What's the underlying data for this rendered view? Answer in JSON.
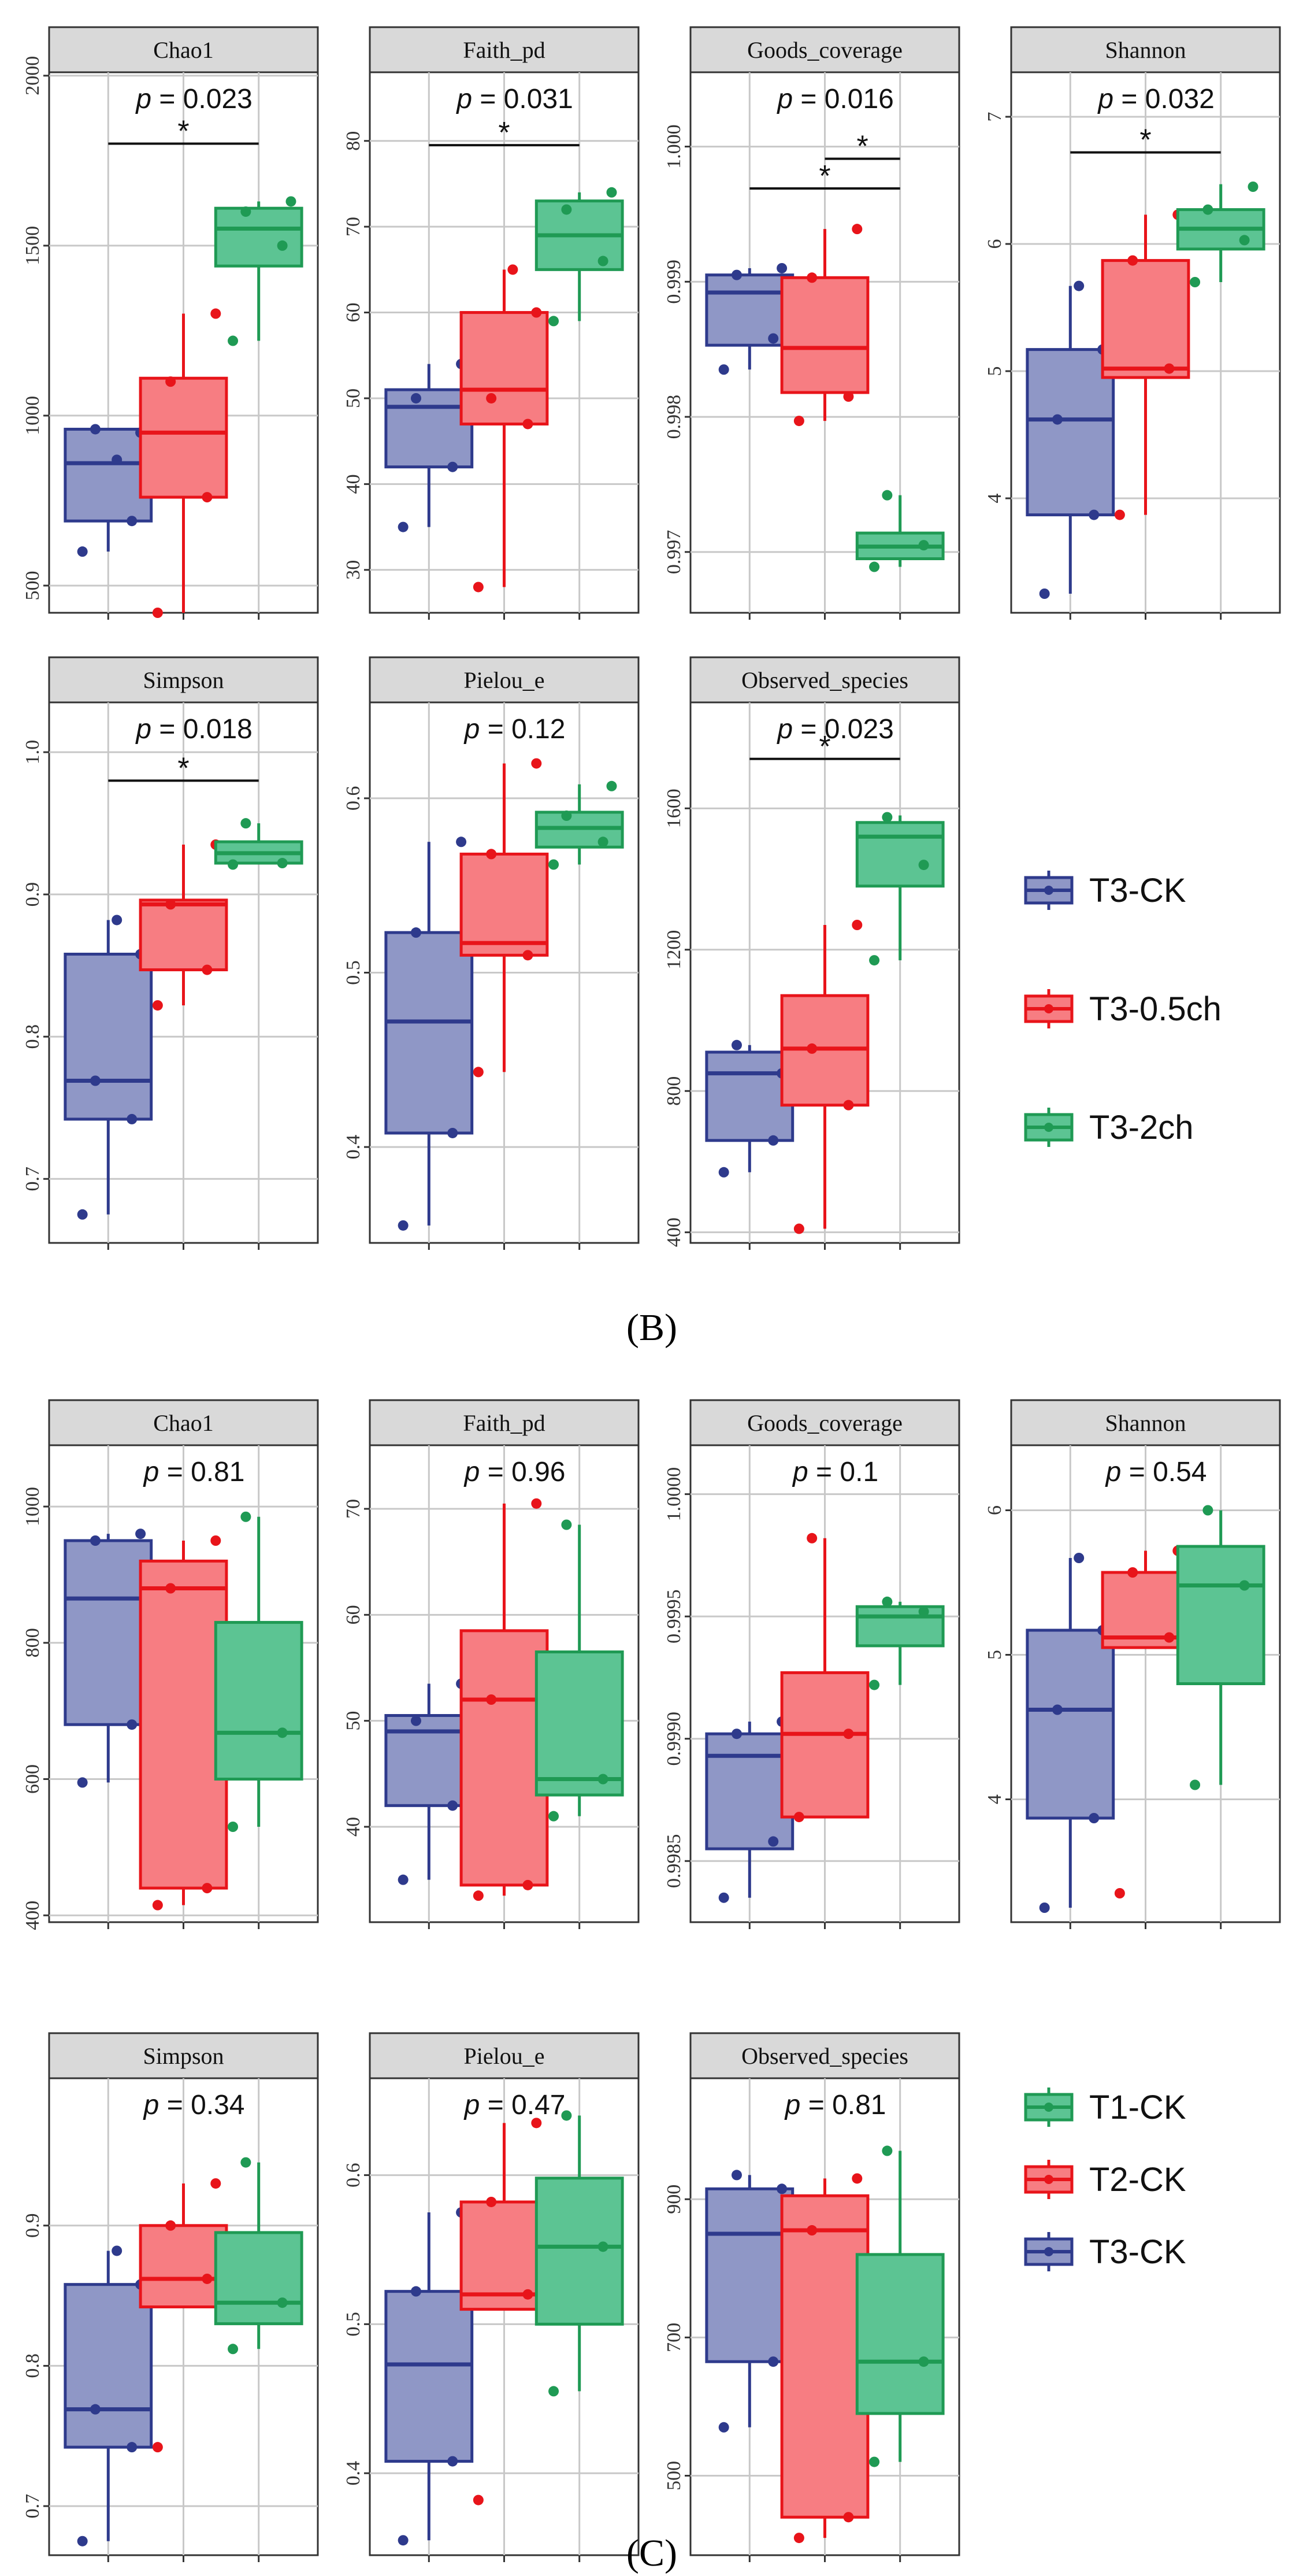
{
  "colors": {
    "T3-CK": "#2e3a8c",
    "T3-CK_fill": "#8f97c6",
    "T3-0.5ch": "#e8141a",
    "T3-0.5ch_fill": "#f77d82",
    "T3-2ch": "#1f9a54",
    "T3-2ch_fill": "#5cc493",
    "T1-CK": "#1f9a54",
    "T1-CK_fill": "#5cc493",
    "T2-CK": "#e8141a",
    "T2-CK_fill": "#f77d82"
  },
  "chart_data": [
    {
      "label": "(B)",
      "type": "box",
      "groups": [
        "T3-CK",
        "T3-0.5ch",
        "T3-2ch"
      ],
      "legend": [
        "T3-CK",
        "T3-0.5ch",
        "T3-2ch"
      ],
      "panels": [
        {
          "title": "Chao1",
          "p_label": "p = 0.023",
          "ylim": [
            420,
            2010
          ],
          "ticks": [
            "500",
            "1000",
            "1500",
            "2000"
          ],
          "boxes": [
            {
              "group": "T3-CK",
              "min": 600,
              "q1": 690,
              "median": 860,
              "q3": 960,
              "max": 960,
              "points": [
                600,
                690,
                960,
                950,
                870
              ]
            },
            {
              "group": "T3-0.5ch",
              "min": 420,
              "q1": 760,
              "median": 950,
              "q3": 1110,
              "max": 1300,
              "points": [
                420,
                760,
                1100,
                1300
              ]
            },
            {
              "group": "T3-2ch",
              "min": 1220,
              "q1": 1440,
              "median": 1550,
              "q3": 1610,
              "max": 1630,
              "points": [
                1220,
                1500,
                1600,
                1630
              ]
            }
          ],
          "brackets": [
            {
              "from": "T3-CK",
              "to": "T3-2ch",
              "y": 1800,
              "label": "*"
            }
          ]
        },
        {
          "title": "Faith_pd",
          "p_label": "p = 0.031",
          "ylim": [
            25,
            88
          ],
          "ticks": [
            "30",
            "40",
            "50",
            "60",
            "70",
            "80"
          ],
          "boxes": [
            {
              "group": "T3-CK",
              "min": 35,
              "q1": 42,
              "median": 49,
              "q3": 51,
              "max": 54,
              "points": [
                35,
                42,
                50,
                54
              ]
            },
            {
              "group": "T3-0.5ch",
              "min": 28,
              "q1": 47,
              "median": 51,
              "q3": 60,
              "max": 65,
              "points": [
                28,
                47,
                50,
                60,
                65
              ]
            },
            {
              "group": "T3-2ch",
              "min": 59,
              "q1": 65,
              "median": 69,
              "q3": 73,
              "max": 74,
              "points": [
                59,
                66,
                72,
                74
              ]
            }
          ],
          "brackets": [
            {
              "from": "T3-CK",
              "to": "T3-2ch",
              "y": 79.5,
              "label": "*"
            }
          ]
        },
        {
          "title": "Goods_coverage",
          "p_label": "p = 0.016",
          "ylim": [
            0.99655,
            1.00055
          ],
          "ticks": [
            "0.997",
            "0.998",
            "0.999",
            "1.000"
          ],
          "boxes": [
            {
              "group": "T3-CK",
              "min": 0.99835,
              "q1": 0.99853,
              "median": 0.99892,
              "q3": 0.99905,
              "max": 0.9991,
              "points": [
                0.99835,
                0.99858,
                0.99905,
                0.9991
              ]
            },
            {
              "group": "T3-0.5ch",
              "min": 0.99797,
              "q1": 0.99818,
              "median": 0.99851,
              "q3": 0.99903,
              "max": 0.99939,
              "points": [
                0.99797,
                0.99815,
                0.99903,
                0.99939
              ]
            },
            {
              "group": "T3-2ch",
              "min": 0.99689,
              "q1": 0.99695,
              "median": 0.99704,
              "q3": 0.99714,
              "max": 0.99742,
              "points": [
                0.99689,
                0.99705,
                0.99742
              ]
            }
          ],
          "brackets": [
            {
              "from": "T3-CK",
              "to": "T3-2ch",
              "y": 0.99969,
              "label": "*"
            },
            {
              "from": "T3-0.5ch",
              "to": "T3-2ch",
              "y": 0.99991,
              "label": "*"
            }
          ]
        },
        {
          "title": "Shannon",
          "p_label": "p = 0.032",
          "ylim": [
            3.1,
            7.35
          ],
          "ticks": [
            "4",
            "5",
            "6",
            "7"
          ],
          "boxes": [
            {
              "group": "T3-CK",
              "min": 3.25,
              "q1": 3.87,
              "median": 4.62,
              "q3": 5.17,
              "max": 5.67,
              "points": [
                3.25,
                3.87,
                4.62,
                5.17,
                5.67
              ]
            },
            {
              "group": "T3-0.5ch",
              "min": 3.87,
              "q1": 4.95,
              "median": 5.02,
              "q3": 5.87,
              "max": 6.23,
              "points": [
                3.87,
                5.02,
                5.87,
                6.23
              ]
            },
            {
              "group": "T3-2ch",
              "min": 5.7,
              "q1": 5.96,
              "median": 6.12,
              "q3": 6.27,
              "max": 6.47,
              "points": [
                5.7,
                6.03,
                6.27,
                6.45
              ]
            }
          ],
          "brackets": [
            {
              "from": "T3-CK",
              "to": "T3-2ch",
              "y": 6.72,
              "label": "*"
            }
          ]
        },
        {
          "title": "Simpson",
          "p_label": "p = 0.018",
          "ylim": [
            0.655,
            1.035
          ],
          "ticks": [
            "0.7",
            "0.8",
            "0.9",
            "1.0"
          ],
          "boxes": [
            {
              "group": "T3-CK",
              "min": 0.675,
              "q1": 0.742,
              "median": 0.769,
              "q3": 0.858,
              "max": 0.882,
              "points": [
                0.675,
                0.742,
                0.769,
                0.858,
                0.882
              ]
            },
            {
              "group": "T3-0.5ch",
              "min": 0.822,
              "q1": 0.847,
              "median": 0.893,
              "q3": 0.896,
              "max": 0.935,
              "points": [
                0.822,
                0.847,
                0.893,
                0.935
              ]
            },
            {
              "group": "T3-2ch",
              "min": 0.921,
              "q1": 0.922,
              "median": 0.929,
              "q3": 0.937,
              "max": 0.95,
              "points": [
                0.921,
                0.922,
                0.95
              ]
            }
          ],
          "brackets": [
            {
              "from": "T3-CK",
              "to": "T3-2ch",
              "y": 0.98,
              "label": "*"
            }
          ]
        },
        {
          "title": "Pielou_e",
          "p_label": "p = 0.12",
          "ylim": [
            0.345,
            0.655
          ],
          "ticks": [
            "0.4",
            "0.5",
            "0.6"
          ],
          "boxes": [
            {
              "group": "T3-CK",
              "min": 0.355,
              "q1": 0.408,
              "median": 0.472,
              "q3": 0.523,
              "max": 0.575,
              "points": [
                0.355,
                0.408,
                0.523,
                0.575
              ]
            },
            {
              "group": "T3-0.5ch",
              "min": 0.443,
              "q1": 0.51,
              "median": 0.517,
              "q3": 0.568,
              "max": 0.62,
              "points": [
                0.443,
                0.51,
                0.568,
                0.62
              ]
            },
            {
              "group": "T3-2ch",
              "min": 0.562,
              "q1": 0.572,
              "median": 0.583,
              "q3": 0.592,
              "max": 0.608,
              "points": [
                0.562,
                0.575,
                0.59,
                0.607
              ]
            }
          ],
          "brackets": []
        },
        {
          "title": "Observed_species",
          "p_label": "p = 0.023",
          "ylim": [
            370,
            1900
          ],
          "ticks": [
            "400",
            "800",
            "1200",
            "1600"
          ],
          "boxes": [
            {
              "group": "T3-CK",
              "min": 570,
              "q1": 660,
              "median": 850,
              "q3": 910,
              "max": 930,
              "points": [
                570,
                660,
                930,
                850
              ]
            },
            {
              "group": "T3-0.5ch",
              "min": 410,
              "q1": 760,
              "median": 920,
              "q3": 1070,
              "max": 1270,
              "points": [
                410,
                760,
                920,
                1270
              ]
            },
            {
              "group": "T3-2ch",
              "min": 1170,
              "q1": 1380,
              "median": 1520,
              "q3": 1560,
              "max": 1580,
              "points": [
                1170,
                1440,
                1575
              ]
            }
          ],
          "brackets": [
            {
              "from": "T3-CK",
              "to": "T3-2ch",
              "y": 1740,
              "label": "*"
            }
          ]
        }
      ]
    },
    {
      "label": "(C)",
      "type": "box",
      "groups": [
        "T3-CK",
        "T2-CK",
        "T1-CK"
      ],
      "legend": [
        "T1-CK",
        "T2-CK",
        "T3-CK"
      ],
      "panels": [
        {
          "title": "Chao1",
          "p_label": "p = 0.81",
          "ylim": [
            390,
            1090
          ],
          "ticks": [
            "400",
            "600",
            "800",
            "1000"
          ],
          "boxes": [
            {
              "group": "T3-CK",
              "min": 595,
              "q1": 680,
              "median": 865,
              "q3": 950,
              "max": 960,
              "points": [
                595,
                680,
                950,
                960
              ]
            },
            {
              "group": "T2-CK",
              "min": 415,
              "q1": 440,
              "median": 880,
              "q3": 920,
              "max": 950,
              "points": [
                415,
                440,
                880,
                950
              ]
            },
            {
              "group": "T1-CK",
              "min": 530,
              "q1": 600,
              "median": 668,
              "q3": 830,
              "max": 985,
              "points": [
                530,
                668,
                985
              ]
            }
          ],
          "brackets": []
        },
        {
          "title": "Faith_pd",
          "p_label": "p = 0.96",
          "ylim": [
            31,
            76
          ],
          "ticks": [
            "40",
            "50",
            "60",
            "70"
          ],
          "boxes": [
            {
              "group": "T3-CK",
              "min": 35,
              "q1": 42,
              "median": 49,
              "q3": 50.5,
              "max": 53.5,
              "points": [
                35,
                42,
                50,
                53.5
              ]
            },
            {
              "group": "T2-CK",
              "min": 33.5,
              "q1": 34.5,
              "median": 52,
              "q3": 58.5,
              "max": 70.5,
              "points": [
                33.5,
                34.5,
                52,
                70.5
              ]
            },
            {
              "group": "T1-CK",
              "min": 41,
              "q1": 43,
              "median": 44.5,
              "q3": 56.5,
              "max": 68.5,
              "points": [
                41,
                44.5,
                68.5
              ]
            }
          ],
          "brackets": []
        },
        {
          "title": "Goods_coverage",
          "p_label": "p = 0.1",
          "ylim": [
            0.99825,
            1.0002
          ],
          "ticks": [
            "0.9985",
            "0.9990",
            "0.9995",
            "1.0000"
          ],
          "boxes": [
            {
              "group": "T3-CK",
              "min": 0.99835,
              "q1": 0.99855,
              "median": 0.99893,
              "q3": 0.99902,
              "max": 0.99907,
              "points": [
                0.99835,
                0.99858,
                0.99902,
                0.99907
              ]
            },
            {
              "group": "T2-CK",
              "min": 0.99868,
              "q1": 0.99868,
              "median": 0.99902,
              "q3": 0.99927,
              "max": 0.99982,
              "points": [
                0.99868,
                0.99902,
                0.99982
              ]
            },
            {
              "group": "T1-CK",
              "min": 0.99922,
              "q1": 0.99938,
              "median": 0.9995,
              "q3": 0.99954,
              "max": 0.99956,
              "points": [
                0.99922,
                0.99952,
                0.99956
              ]
            }
          ],
          "brackets": []
        },
        {
          "title": "Shannon",
          "p_label": "p = 0.54",
          "ylim": [
            3.15,
            6.45
          ],
          "ticks": [
            "4",
            "5",
            "6"
          ],
          "boxes": [
            {
              "group": "T3-CK",
              "min": 3.25,
              "q1": 3.87,
              "median": 4.62,
              "q3": 5.17,
              "max": 5.67,
              "points": [
                3.25,
                3.87,
                4.62,
                5.17,
                5.67
              ]
            },
            {
              "group": "T2-CK",
              "min": 5.05,
              "q1": 5.05,
              "median": 5.12,
              "q3": 5.57,
              "max": 5.72,
              "points": [
                3.35,
                5.12,
                5.57,
                5.72
              ]
            },
            {
              "group": "T1-CK",
              "min": 4.1,
              "q1": 4.8,
              "median": 5.48,
              "q3": 5.75,
              "max": 6.0,
              "points": [
                4.1,
                5.48,
                6.0
              ]
            }
          ],
          "brackets": []
        },
        {
          "title": "Simpson",
          "p_label": "p = 0.34",
          "ylim": [
            0.665,
            1.005
          ],
          "ticks": [
            "0.7",
            "0.8",
            "0.9"
          ],
          "boxes": [
            {
              "group": "T3-CK",
              "min": 0.675,
              "q1": 0.742,
              "median": 0.769,
              "q3": 0.858,
              "max": 0.882,
              "points": [
                0.675,
                0.742,
                0.769,
                0.858,
                0.882
              ]
            },
            {
              "group": "T2-CK",
              "min": 0.842,
              "q1": 0.842,
              "median": 0.862,
              "q3": 0.9,
              "max": 0.93,
              "points": [
                0.742,
                0.862,
                0.9,
                0.93
              ]
            },
            {
              "group": "T1-CK",
              "min": 0.812,
              "q1": 0.83,
              "median": 0.845,
              "q3": 0.895,
              "max": 0.945,
              "points": [
                0.812,
                0.845,
                0.945
              ]
            }
          ],
          "brackets": []
        },
        {
          "title": "Pielou_e",
          "p_label": "p = 0.47",
          "ylim": [
            0.345,
            0.665
          ],
          "ticks": [
            "0.4",
            "0.5",
            "0.6"
          ],
          "boxes": [
            {
              "group": "T3-CK",
              "min": 0.355,
              "q1": 0.408,
              "median": 0.473,
              "q3": 0.522,
              "max": 0.575,
              "points": [
                0.355,
                0.408,
                0.522,
                0.575
              ]
            },
            {
              "group": "T2-CK",
              "min": 0.51,
              "q1": 0.51,
              "median": 0.52,
              "q3": 0.582,
              "max": 0.635,
              "points": [
                0.382,
                0.52,
                0.582,
                0.635
              ]
            },
            {
              "group": "T1-CK",
              "min": 0.455,
              "q1": 0.5,
              "median": 0.552,
              "q3": 0.598,
              "max": 0.64,
              "points": [
                0.455,
                0.552,
                0.64
              ]
            }
          ],
          "brackets": []
        },
        {
          "title": "Observed_species",
          "p_label": "p = 0.81",
          "ylim": [
            385,
            1075
          ],
          "ticks": [
            "500",
            "700",
            "900"
          ],
          "boxes": [
            {
              "group": "T3-CK",
              "min": 570,
              "q1": 665,
              "median": 850,
              "q3": 915,
              "max": 935,
              "points": [
                570,
                665,
                935,
                915
              ]
            },
            {
              "group": "T2-CK",
              "min": 410,
              "q1": 440,
              "median": 855,
              "q3": 905,
              "max": 930,
              "points": [
                410,
                440,
                855,
                930
              ]
            },
            {
              "group": "T1-CK",
              "min": 520,
              "q1": 590,
              "median": 665,
              "q3": 820,
              "max": 970,
              "points": [
                520,
                665,
                970
              ]
            }
          ],
          "brackets": []
        }
      ]
    }
  ]
}
